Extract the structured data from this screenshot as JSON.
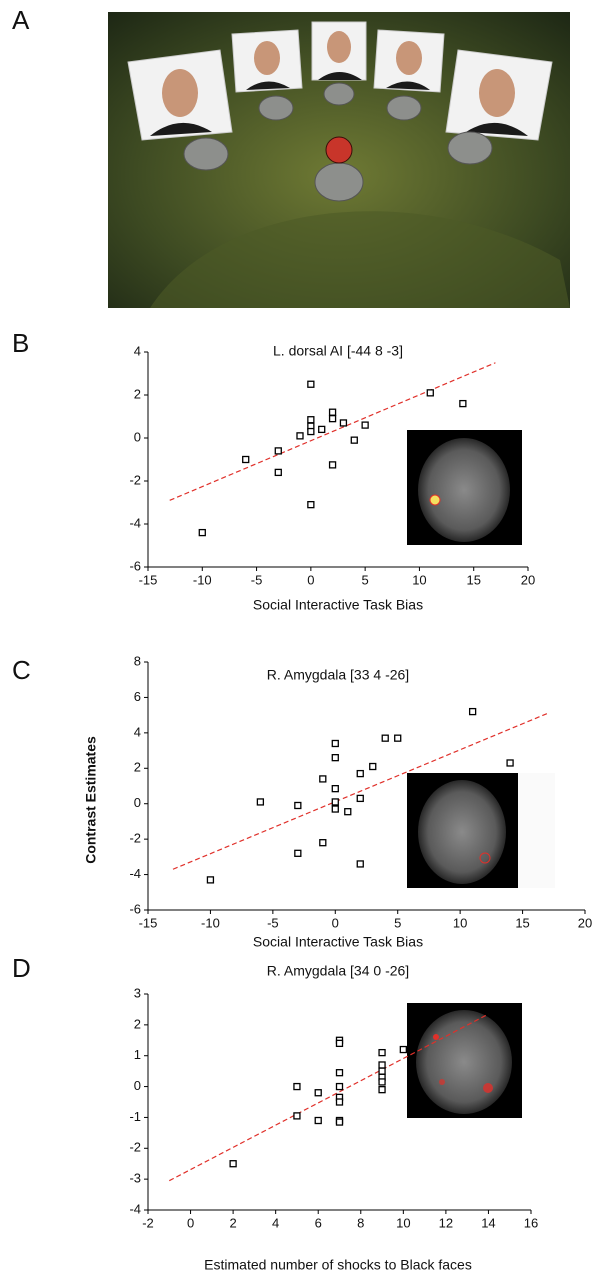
{
  "panels": [
    "A",
    "B",
    "C",
    "D"
  ],
  "chart_data": [
    {
      "type": "scatter",
      "title": "L. dorsal AI [-44 8 -3]",
      "xlabel": "Social Interactive Task Bias",
      "x": [
        -10,
        -6,
        -3,
        -3,
        -1,
        0,
        0,
        0,
        0,
        0,
        1,
        2,
        2,
        2,
        3,
        4,
        5,
        11,
        14
      ],
      "values": [
        -4.4,
        -1.0,
        -0.6,
        -1.6,
        0.1,
        2.5,
        0.85,
        0.55,
        0.3,
        -3.1,
        0.4,
        1.2,
        0.9,
        -1.25,
        0.7,
        -0.1,
        0.6,
        2.1,
        1.6
      ],
      "color": "#000000",
      "trendline": {
        "x": [
          -13,
          17
        ],
        "y": [
          -2.9,
          3.5
        ],
        "color": "#e0302a"
      },
      "xlim": [
        -15,
        20
      ],
      "xticks": [
        -15,
        -10,
        -5,
        0,
        5,
        10,
        15,
        20
      ],
      "ylim": [
        -6,
        4
      ],
      "yticks": [
        -6,
        -4,
        -2,
        0,
        2,
        4
      ]
    },
    {
      "type": "scatter",
      "title": "R. Amygdala [33 4 -26]",
      "xlabel": "Social Interactive Task Bias",
      "ylabel": "Contrast Estimates",
      "x": [
        -10,
        -6,
        -3,
        -3,
        -1,
        -1,
        0,
        0,
        0,
        0,
        0,
        1,
        2,
        2,
        2,
        3,
        4,
        5,
        11,
        14
      ],
      "values": [
        -4.3,
        0.1,
        -0.1,
        -2.8,
        1.4,
        -2.2,
        3.4,
        2.6,
        0.85,
        0.1,
        -0.3,
        -0.45,
        1.7,
        0.3,
        -3.4,
        2.1,
        3.7,
        3.7,
        5.2,
        2.3
      ],
      "color": "#000000",
      "trendline": {
        "x": [
          -13,
          17
        ],
        "y": [
          -3.7,
          5.1
        ],
        "color": "#e0302a"
      },
      "xlim": [
        -15,
        20
      ],
      "xticks": [
        -15,
        -10,
        -5,
        0,
        5,
        10,
        15,
        20
      ],
      "ylim": [
        -6,
        8
      ],
      "yticks": [
        -6,
        -4,
        -2,
        0,
        2,
        4,
        6,
        8
      ]
    },
    {
      "type": "scatter",
      "title": "R. Amygdala [34 0 -26]",
      "xlabel": "Estimated number of shocks to Black faces",
      "x": [
        2,
        5,
        5,
        6,
        6,
        7,
        7,
        7,
        7,
        7,
        7,
        7,
        7,
        9,
        9,
        9,
        9,
        9,
        9,
        10
      ],
      "values": [
        -2.5,
        0.0,
        -0.95,
        -0.2,
        -1.1,
        1.5,
        1.4,
        0.45,
        0.0,
        -0.35,
        -0.5,
        -1.1,
        -1.15,
        1.1,
        0.7,
        0.5,
        0.3,
        0.15,
        -0.1,
        1.2
      ],
      "color": "#000000",
      "trendline": {
        "x": [
          -1,
          14
        ],
        "y": [
          -3.05,
          2.35
        ],
        "color": "#e0302a"
      },
      "xlim": [
        -2,
        16
      ],
      "xticks": [
        -2,
        0,
        2,
        4,
        6,
        8,
        10,
        12,
        14,
        16
      ],
      "ylim": [
        -4,
        3
      ],
      "yticks": [
        -4,
        -3,
        -2,
        -1,
        0,
        1,
        2,
        3
      ]
    }
  ]
}
